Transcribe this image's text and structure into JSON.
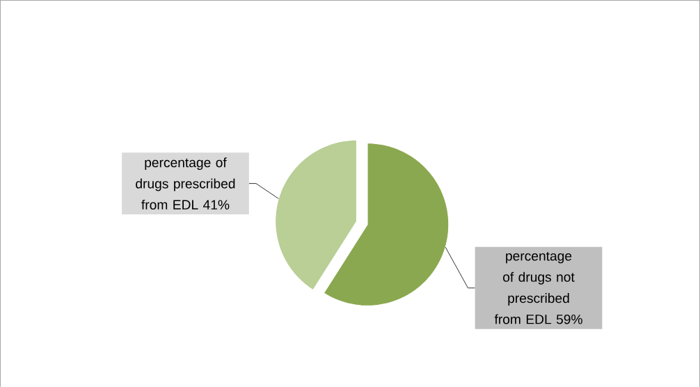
{
  "chart_data": {
    "type": "pie",
    "categories": [
      "percentage of drugs not prescribed from EDL",
      "percentage of drugs prescribed from EDL"
    ],
    "values": [
      59,
      41
    ],
    "colors": [
      "#8aa84f",
      "#b9cf96"
    ],
    "value_labels": [
      "59%",
      "41%"
    ]
  }
}
